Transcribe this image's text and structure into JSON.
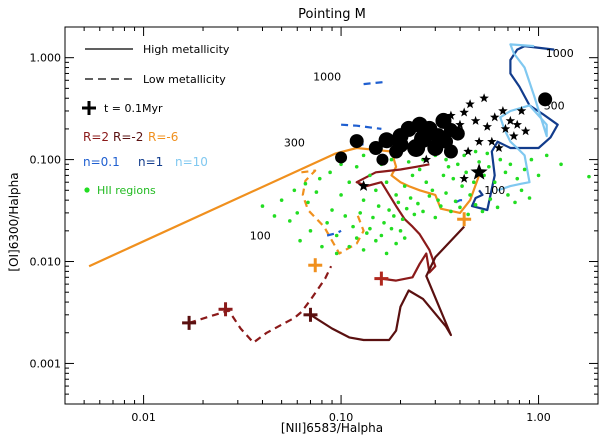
{
  "chart_data": {
    "type": "scatter",
    "title": "Pointing M",
    "xlabel": "[NII]6583/Halpha",
    "ylabel": "[OI]6300/Halpha",
    "xscale": "log",
    "yscale": "log",
    "xlim": [
      0.004,
      2.0
    ],
    "ylim": [
      0.0004,
      2.0
    ],
    "xticks": [
      {
        "value": 0.01,
        "label": "0.01"
      },
      {
        "value": 0.1,
        "label": "0.10"
      },
      {
        "value": 1.0,
        "label": "1.00"
      }
    ],
    "yticks": [
      {
        "value": 0.001,
        "label": "0.001"
      },
      {
        "value": 0.01,
        "label": "0.010"
      },
      {
        "value": 0.1,
        "label": "0.100"
      },
      {
        "value": 1.0,
        "label": "1.000"
      }
    ],
    "legend": {
      "position": "top-left",
      "entries": [
        {
          "label": "High metallicity",
          "style": "solid"
        },
        {
          "label": "Low metallicity",
          "style": "dashed"
        },
        {
          "label": "t = 0.1Myr",
          "marker": "plus"
        },
        {
          "label": "HII regions",
          "marker": "green-dot"
        }
      ],
      "r_labels": [
        {
          "text": "R=2",
          "color": "#8b1a1a"
        },
        {
          "text": "R=-2",
          "color": "#5a1010"
        },
        {
          "text": "R=-6",
          "color": "#f0901e"
        }
      ],
      "n_labels": [
        {
          "text": "n=0.1",
          "color": "#1f5fd0"
        },
        {
          "text": "n=1",
          "color": "#123c8c"
        },
        {
          "text": "n=10",
          "color": "#80c8f0"
        }
      ]
    },
    "annotations": [
      {
        "text": "1000",
        "x": 0.085,
        "y": 0.6
      },
      {
        "text": "1000",
        "x": 1.28,
        "y": 1.02
      },
      {
        "text": "300",
        "x": 1.2,
        "y": 0.31
      },
      {
        "text": "300",
        "x": 0.058,
        "y": 0.135
      },
      {
        "text": "100",
        "x": 0.6,
        "y": 0.046
      },
      {
        "text": "100",
        "x": 0.039,
        "y": 0.0165
      }
    ],
    "series": [
      {
        "name": "R=-6 high metallicity",
        "color": "#f0901e",
        "style": "solid",
        "x": [
          0.0053,
          0.094,
          0.12,
          0.18,
          0.19,
          0.18,
          0.2,
          0.22,
          0.25,
          0.3,
          0.32,
          0.4,
          0.45,
          0.5
        ],
        "y": [
          0.009,
          0.115,
          0.13,
          0.12,
          0.085,
          0.07,
          0.06,
          0.055,
          0.05,
          0.045,
          0.033,
          0.03,
          0.04,
          0.07
        ]
      },
      {
        "name": "R=-6 low metallicity",
        "color": "#f0901e",
        "style": "dashed",
        "x": [
          0.063,
          0.074,
          0.066,
          0.064,
          0.068,
          0.082,
          0.098,
          0.12,
          0.13,
          0.12
        ],
        "y": [
          0.075,
          0.078,
          0.062,
          0.045,
          0.032,
          0.022,
          0.012,
          0.015,
          0.02,
          0.03
        ]
      },
      {
        "name": "R=2 high metallicity",
        "color": "#8b1a1a",
        "style": "solid",
        "x": [
          0.16,
          0.19,
          0.23,
          0.25,
          0.27,
          0.28,
          0.3,
          0.28,
          0.25,
          0.23,
          0.21,
          0.19,
          0.16,
          0.135,
          0.12,
          0.15,
          0.2,
          0.24,
          0.28
        ],
        "y": [
          0.0068,
          0.0065,
          0.007,
          0.0095,
          0.012,
          0.0078,
          0.009,
          0.013,
          0.0185,
          0.022,
          0.026,
          0.035,
          0.06,
          0.055,
          0.06,
          0.075,
          0.08,
          0.085,
          0.09
        ]
      },
      {
        "name": "R=-2 high metallicity",
        "color": "#5a1010",
        "style": "solid",
        "x": [
          0.07,
          0.09,
          0.11,
          0.13,
          0.155,
          0.175,
          0.19,
          0.2,
          0.22,
          0.26,
          0.34,
          0.36,
          0.27,
          0.3,
          0.36,
          0.42
        ],
        "y": [
          0.003,
          0.0022,
          0.0018,
          0.0017,
          0.0017,
          0.0017,
          0.0021,
          0.0036,
          0.0052,
          0.0043,
          0.0023,
          0.0019,
          0.0072,
          0.011,
          0.016,
          0.022
        ]
      },
      {
        "name": "R=-2 low metallicity",
        "color": "#8b1a1a",
        "style": "dashed",
        "x": [
          0.017,
          0.023,
          0.027,
          0.031,
          0.036,
          0.042,
          0.05,
          0.058,
          0.063,
          0.07,
          0.077,
          0.083,
          0.089
        ],
        "y": [
          0.0025,
          0.003,
          0.0033,
          0.0022,
          0.0016,
          0.002,
          0.0024,
          0.0028,
          0.0032,
          0.0042,
          0.0055,
          0.0068,
          0.009
        ]
      },
      {
        "name": "n=1 high metallicity",
        "color": "#123c8c",
        "style": "solid",
        "x": [
          0.5,
          0.52,
          0.48,
          0.46,
          0.55,
          0.6,
          0.58,
          0.62,
          0.72,
          0.82,
          1.0,
          1.15,
          1.25,
          1.05,
          0.9,
          0.8,
          0.72,
          0.72,
          0.78,
          0.85,
          1.2
        ],
        "y": [
          0.05,
          0.045,
          0.042,
          0.035,
          0.032,
          0.07,
          0.12,
          0.15,
          0.13,
          0.13,
          0.13,
          0.165,
          0.22,
          0.28,
          0.34,
          0.52,
          0.7,
          0.95,
          1.2,
          1.3,
          1.2
        ]
      },
      {
        "name": "n=10 high metallicity",
        "color": "#80c8f0",
        "style": "solid",
        "x": [
          0.62,
          0.72,
          0.82,
          0.9,
          0.85,
          0.78,
          0.72,
          0.67,
          0.64,
          0.72,
          0.9,
          1.1,
          1.1,
          0.95,
          0.85,
          0.75,
          0.72,
          0.95
        ],
        "y": [
          0.05,
          0.055,
          0.058,
          0.06,
          0.11,
          0.13,
          0.15,
          0.2,
          0.26,
          0.3,
          0.34,
          0.22,
          0.17,
          0.42,
          0.8,
          1.1,
          1.35,
          1.3
        ]
      },
      {
        "name": "n=0.1 low metallicity a",
        "color": "#1f5fd0",
        "style": "dashed",
        "x": [
          0.13,
          0.17
        ],
        "y": [
          0.55,
          0.58
        ]
      },
      {
        "name": "n=0.1 low metallicity b",
        "color": "#1f5fd0",
        "style": "dashed",
        "x": [
          0.1,
          0.12,
          0.16
        ],
        "y": [
          0.22,
          0.215,
          0.2
        ]
      },
      {
        "name": "n=0.1 low metallicity c",
        "color": "#1f5fd0",
        "style": "dashed",
        "x": [
          0.085,
          0.095,
          0.1
        ],
        "y": [
          0.018,
          0.019,
          0.02
        ]
      },
      {
        "name": "n=0.1 low metallicity d",
        "color": "#1f5fd0",
        "style": "dashed",
        "x": [
          0.12,
          0.13
        ],
        "y": [
          0.145,
          0.14
        ]
      },
      {
        "name": "n=0.1 low metallicity e",
        "color": "#1f5fd0",
        "style": "dashed",
        "x": [
          0.38,
          0.4,
          0.42
        ],
        "y": [
          0.038,
          0.04,
          0.04
        ]
      }
    ],
    "plus_markers": [
      {
        "x": 0.017,
        "y": 0.0025,
        "color": "#5a1010"
      },
      {
        "x": 0.026,
        "y": 0.0034,
        "color": "#8b1a1a"
      },
      {
        "x": 0.07,
        "y": 0.003,
        "color": "#5a1010"
      },
      {
        "x": 0.16,
        "y": 0.0068,
        "color": "#b0281e"
      },
      {
        "x": 0.074,
        "y": 0.0092,
        "color": "#f0901e"
      },
      {
        "x": 0.42,
        "y": 0.026,
        "color": "#f0901e"
      }
    ],
    "filled_circles": [
      {
        "x": 0.12,
        "y": 0.152,
        "s": 7
      },
      {
        "x": 0.1,
        "y": 0.105,
        "s": 6
      },
      {
        "x": 0.162,
        "y": 0.1,
        "s": 6
      },
      {
        "x": 0.17,
        "y": 0.155,
        "s": 8
      },
      {
        "x": 0.2,
        "y": 0.14,
        "s": 8
      },
      {
        "x": 0.2,
        "y": 0.17,
        "s": 8
      },
      {
        "x": 0.22,
        "y": 0.2,
        "s": 8
      },
      {
        "x": 0.24,
        "y": 0.13,
        "s": 9
      },
      {
        "x": 0.25,
        "y": 0.22,
        "s": 8
      },
      {
        "x": 0.26,
        "y": 0.16,
        "s": 9
      },
      {
        "x": 0.28,
        "y": 0.2,
        "s": 8
      },
      {
        "x": 0.3,
        "y": 0.13,
        "s": 8
      },
      {
        "x": 0.31,
        "y": 0.17,
        "s": 8
      },
      {
        "x": 0.33,
        "y": 0.24,
        "s": 8
      },
      {
        "x": 0.34,
        "y": 0.15,
        "s": 7
      },
      {
        "x": 0.36,
        "y": 0.195,
        "s": 7
      },
      {
        "x": 0.39,
        "y": 0.18,
        "s": 7
      },
      {
        "x": 0.36,
        "y": 0.12,
        "s": 7
      },
      {
        "x": 0.19,
        "y": 0.12,
        "s": 7
      },
      {
        "x": 0.15,
        "y": 0.13,
        "s": 7
      },
      {
        "x": 1.08,
        "y": 0.39,
        "s": 7
      }
    ],
    "stars": [
      {
        "x": 0.42,
        "y": 0.29,
        "s": 5
      },
      {
        "x": 0.48,
        "y": 0.24,
        "s": 5
      },
      {
        "x": 0.55,
        "y": 0.21,
        "s": 5
      },
      {
        "x": 0.6,
        "y": 0.26,
        "s": 5
      },
      {
        "x": 0.66,
        "y": 0.3,
        "s": 5
      },
      {
        "x": 0.72,
        "y": 0.24,
        "s": 5
      },
      {
        "x": 0.78,
        "y": 0.22,
        "s": 5
      },
      {
        "x": 0.82,
        "y": 0.3,
        "s": 5
      },
      {
        "x": 0.5,
        "y": 0.15,
        "s": 5
      },
      {
        "x": 0.58,
        "y": 0.15,
        "s": 5
      },
      {
        "x": 0.63,
        "y": 0.13,
        "s": 5
      },
      {
        "x": 0.75,
        "y": 0.17,
        "s": 5
      },
      {
        "x": 0.45,
        "y": 0.35,
        "s": 5
      },
      {
        "x": 0.53,
        "y": 0.4,
        "s": 5
      },
      {
        "x": 0.68,
        "y": 0.2,
        "s": 5
      },
      {
        "x": 0.86,
        "y": 0.19,
        "s": 5
      },
      {
        "x": 0.44,
        "y": 0.12,
        "s": 5
      },
      {
        "x": 0.36,
        "y": 0.27,
        "s": 5
      },
      {
        "x": 0.5,
        "y": 0.075,
        "s": 9
      },
      {
        "x": 0.42,
        "y": 0.065,
        "s": 5
      },
      {
        "x": 0.13,
        "y": 0.055,
        "s": 6
      },
      {
        "x": 0.27,
        "y": 0.1,
        "s": 5
      },
      {
        "x": 0.4,
        "y": 0.22,
        "s": 5
      }
    ],
    "hii_regions": [
      {
        "x": 0.12,
        "y": 0.085
      },
      {
        "x": 0.14,
        "y": 0.07
      },
      {
        "x": 0.16,
        "y": 0.09
      },
      {
        "x": 0.11,
        "y": 0.06
      },
      {
        "x": 0.1,
        "y": 0.045
      },
      {
        "x": 0.13,
        "y": 0.04
      },
      {
        "x": 0.15,
        "y": 0.05
      },
      {
        "x": 0.17,
        "y": 0.06
      },
      {
        "x": 0.19,
        "y": 0.045
      },
      {
        "x": 0.21,
        "y": 0.055
      },
      {
        "x": 0.23,
        "y": 0.07
      },
      {
        "x": 0.25,
        "y": 0.08
      },
      {
        "x": 0.27,
        "y": 0.06
      },
      {
        "x": 0.29,
        "y": 0.05
      },
      {
        "x": 0.31,
        "y": 0.04
      },
      {
        "x": 0.33,
        "y": 0.07
      },
      {
        "x": 0.35,
        "y": 0.085
      },
      {
        "x": 0.37,
        "y": 0.065
      },
      {
        "x": 0.39,
        "y": 0.09
      },
      {
        "x": 0.41,
        "y": 0.055
      },
      {
        "x": 0.43,
        "y": 0.075
      },
      {
        "x": 0.45,
        "y": 0.045
      },
      {
        "x": 0.47,
        "y": 0.06
      },
      {
        "x": 0.5,
        "y": 0.095
      },
      {
        "x": 0.53,
        "y": 0.07
      },
      {
        "x": 0.56,
        "y": 0.085
      },
      {
        "x": 0.6,
        "y": 0.06
      },
      {
        "x": 0.64,
        "y": 0.1
      },
      {
        "x": 0.68,
        "y": 0.075
      },
      {
        "x": 0.72,
        "y": 0.09
      },
      {
        "x": 0.78,
        "y": 0.065
      },
      {
        "x": 0.85,
        "y": 0.08
      },
      {
        "x": 0.92,
        "y": 0.1
      },
      {
        "x": 1.0,
        "y": 0.07
      },
      {
        "x": 1.1,
        "y": 0.11
      },
      {
        "x": 1.3,
        "y": 0.09
      },
      {
        "x": 1.8,
        "y": 0.068
      },
      {
        "x": 0.09,
        "y": 0.032
      },
      {
        "x": 0.085,
        "y": 0.024
      },
      {
        "x": 0.095,
        "y": 0.018
      },
      {
        "x": 0.105,
        "y": 0.028
      },
      {
        "x": 0.115,
        "y": 0.022
      },
      {
        "x": 0.125,
        "y": 0.03
      },
      {
        "x": 0.135,
        "y": 0.019
      },
      {
        "x": 0.145,
        "y": 0.027
      },
      {
        "x": 0.155,
        "y": 0.035
      },
      {
        "x": 0.165,
        "y": 0.024
      },
      {
        "x": 0.175,
        "y": 0.032
      },
      {
        "x": 0.185,
        "y": 0.028
      },
      {
        "x": 0.195,
        "y": 0.038
      },
      {
        "x": 0.205,
        "y": 0.026
      },
      {
        "x": 0.215,
        "y": 0.033
      },
      {
        "x": 0.225,
        "y": 0.042
      },
      {
        "x": 0.235,
        "y": 0.029
      },
      {
        "x": 0.245,
        "y": 0.037
      },
      {
        "x": 0.26,
        "y": 0.031
      },
      {
        "x": 0.28,
        "y": 0.044
      },
      {
        "x": 0.3,
        "y": 0.027
      },
      {
        "x": 0.32,
        "y": 0.035
      },
      {
        "x": 0.34,
        "y": 0.047
      },
      {
        "x": 0.36,
        "y": 0.031
      },
      {
        "x": 0.38,
        "y": 0.039
      },
      {
        "x": 0.4,
        "y": 0.034
      },
      {
        "x": 0.44,
        "y": 0.029
      },
      {
        "x": 0.48,
        "y": 0.036
      },
      {
        "x": 0.52,
        "y": 0.031
      },
      {
        "x": 0.57,
        "y": 0.041
      },
      {
        "x": 0.62,
        "y": 0.034
      },
      {
        "x": 0.7,
        "y": 0.045
      },
      {
        "x": 0.76,
        "y": 0.038
      },
      {
        "x": 0.82,
        "y": 0.05
      },
      {
        "x": 0.9,
        "y": 0.042
      },
      {
        "x": 0.075,
        "y": 0.048
      },
      {
        "x": 0.068,
        "y": 0.038
      },
      {
        "x": 0.06,
        "y": 0.03
      },
      {
        "x": 0.055,
        "y": 0.025
      },
      {
        "x": 0.046,
        "y": 0.028
      },
      {
        "x": 0.04,
        "y": 0.035
      },
      {
        "x": 0.05,
        "y": 0.04
      },
      {
        "x": 0.058,
        "y": 0.05
      },
      {
        "x": 0.066,
        "y": 0.058
      },
      {
        "x": 0.078,
        "y": 0.065
      },
      {
        "x": 0.088,
        "y": 0.075
      },
      {
        "x": 0.1,
        "y": 0.09
      },
      {
        "x": 0.13,
        "y": 0.11
      },
      {
        "x": 0.18,
        "y": 0.1
      },
      {
        "x": 0.22,
        "y": 0.095
      },
      {
        "x": 0.26,
        "y": 0.1
      },
      {
        "x": 0.3,
        "y": 0.11
      },
      {
        "x": 0.34,
        "y": 0.1
      },
      {
        "x": 0.42,
        "y": 0.11
      },
      {
        "x": 0.48,
        "y": 0.12
      },
      {
        "x": 0.55,
        "y": 0.115
      },
      {
        "x": 0.11,
        "y": 0.014
      },
      {
        "x": 0.13,
        "y": 0.013
      },
      {
        "x": 0.15,
        "y": 0.016
      },
      {
        "x": 0.17,
        "y": 0.012
      },
      {
        "x": 0.19,
        "y": 0.015
      },
      {
        "x": 0.21,
        "y": 0.017
      },
      {
        "x": 0.12,
        "y": 0.017
      },
      {
        "x": 0.14,
        "y": 0.021
      },
      {
        "x": 0.16,
        "y": 0.018
      },
      {
        "x": 0.18,
        "y": 0.021
      },
      {
        "x": 0.2,
        "y": 0.02
      },
      {
        "x": 0.095,
        "y": 0.012
      },
      {
        "x": 0.08,
        "y": 0.014
      },
      {
        "x": 0.07,
        "y": 0.02
      },
      {
        "x": 0.062,
        "y": 0.016
      }
    ]
  }
}
